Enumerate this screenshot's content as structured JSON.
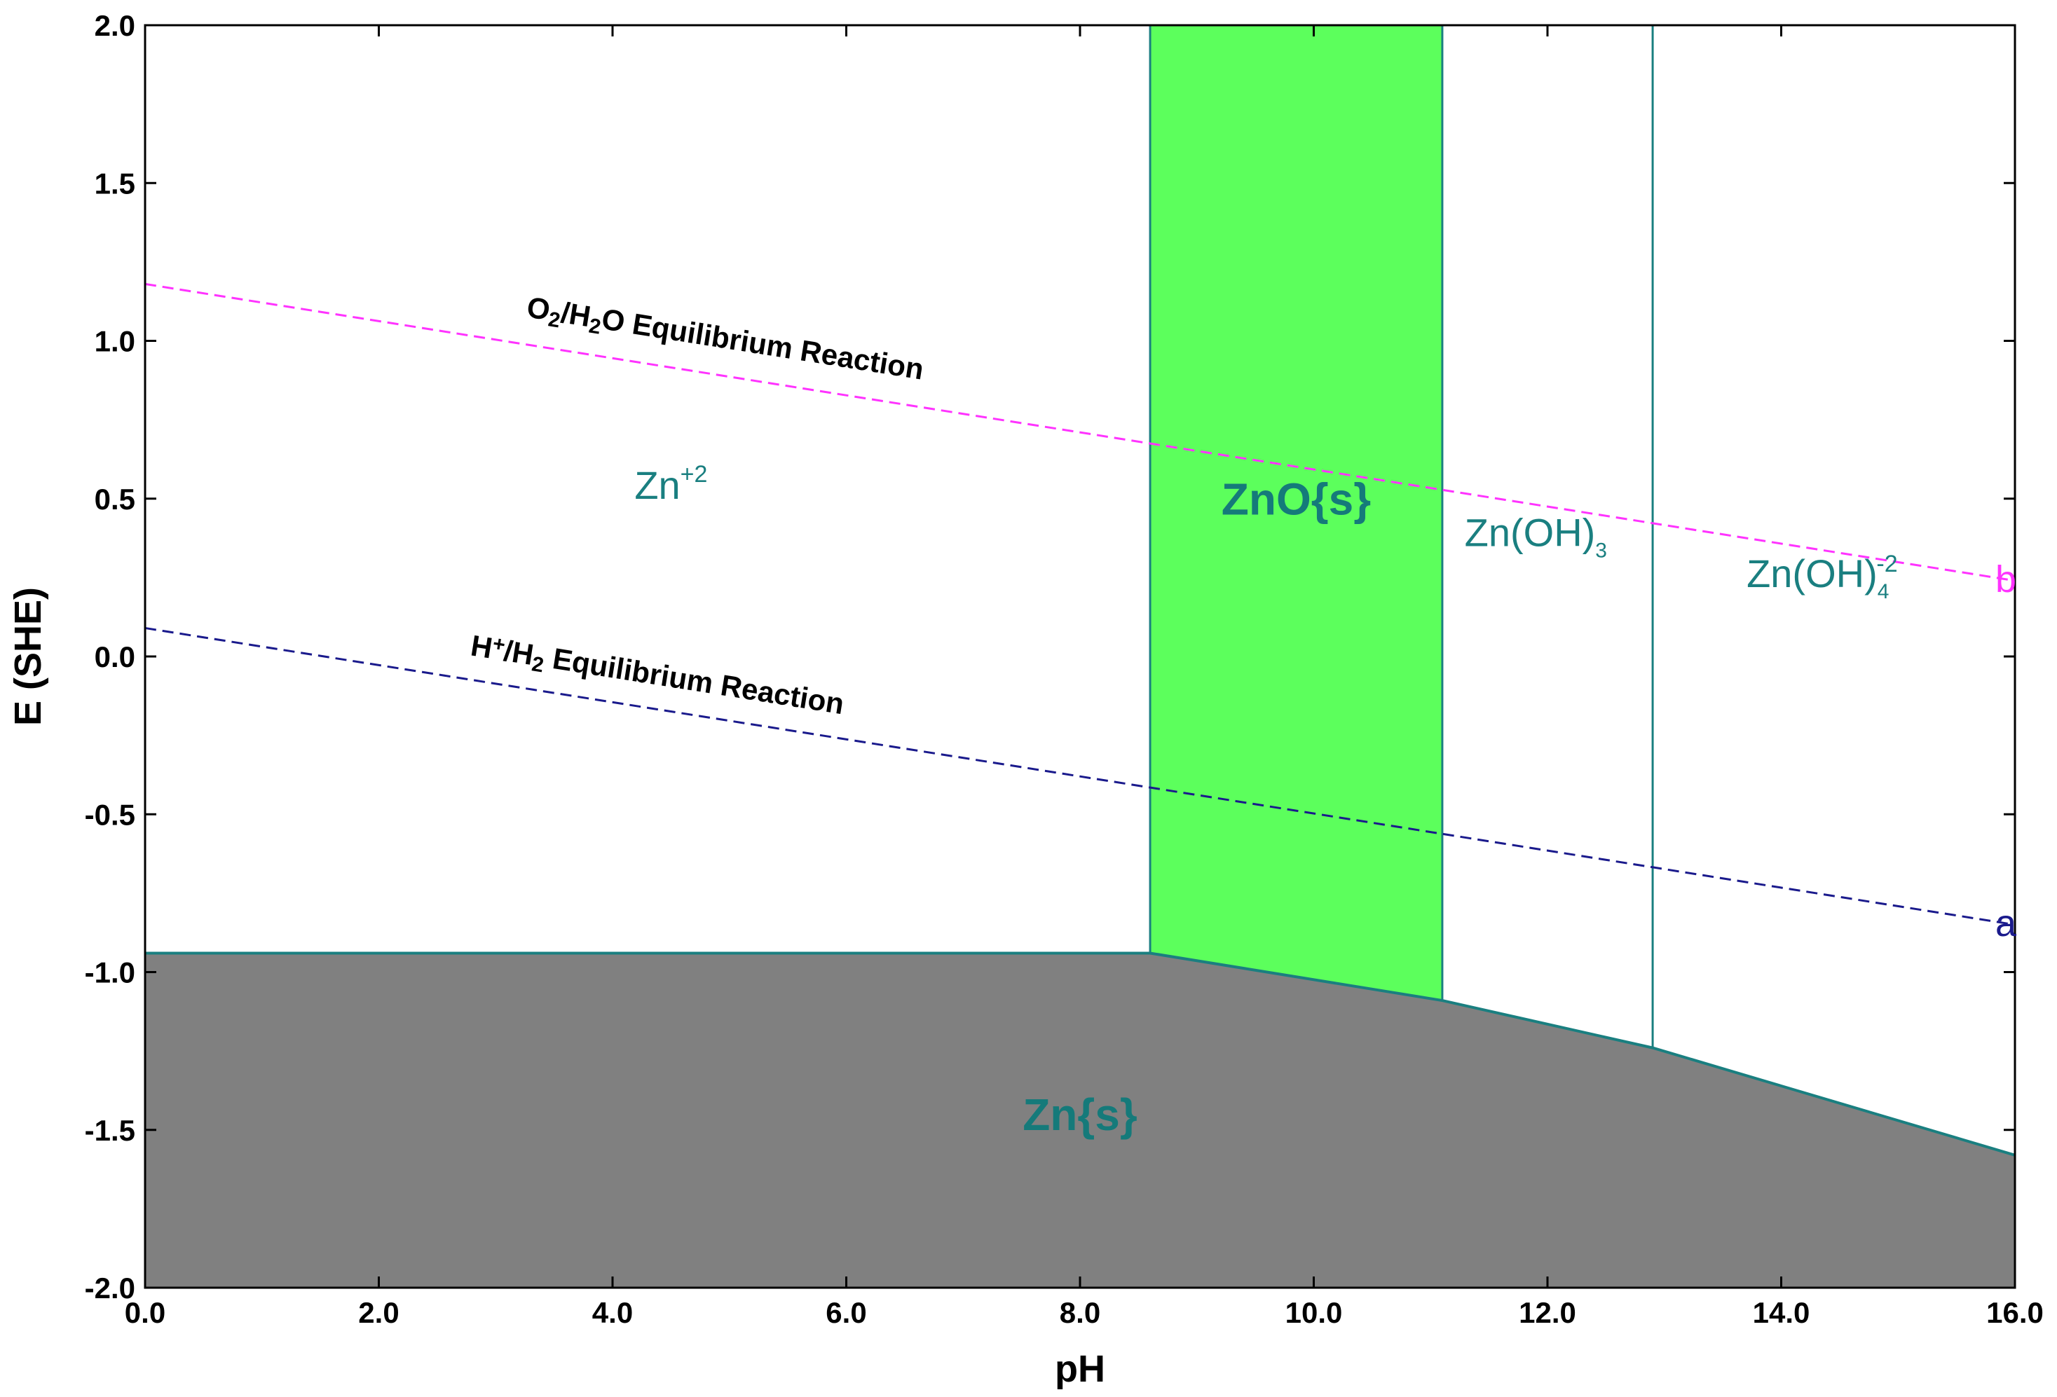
{
  "chart_data": {
    "type": "area",
    "xlabel": "pH",
    "ylabel": "E (SHE)",
    "xlim": [
      0,
      16
    ],
    "ylim": [
      -2,
      2
    ],
    "x_ticks": [
      "0.0",
      "2.0",
      "4.0",
      "6.0",
      "8.0",
      "10.0",
      "12.0",
      "14.0",
      "16.0"
    ],
    "y_ticks": [
      "2.0",
      "1.5",
      "1.0",
      "0.5",
      "0.0",
      "-0.5",
      "-1.0",
      "-1.5",
      "-2.0"
    ],
    "grid": false,
    "colors": {
      "solid_zn": "#808080",
      "solid_zno": "#5cff5c",
      "boundary": "#1a7f80",
      "o2_line": "#ff33ff",
      "h2_line": "#1a1a8c",
      "region_text": "#1a7f80"
    },
    "zn_boundary": [
      {
        "pH": 0.0,
        "E": -0.94
      },
      {
        "pH": 8.6,
        "E": -0.94
      },
      {
        "pH": 11.1,
        "E": -1.09
      },
      {
        "pH": 12.9,
        "E": -1.24
      },
      {
        "pH": 16.0,
        "E": -1.58
      }
    ],
    "zno_region": {
      "pH_min": 8.6,
      "pH_max": 11.1
    },
    "vertical_boundaries": [
      8.6,
      11.1,
      12.9
    ],
    "regions": [
      {
        "label": "Zn",
        "sup": "+2",
        "sub": "",
        "pH": 4.5,
        "E": 0.5,
        "bold": false
      },
      {
        "label": "ZnO{s}",
        "sup": "",
        "sub": "",
        "pH": 9.85,
        "E": 0.45,
        "bold": true
      },
      {
        "label": "Zn(OH)",
        "sup": "",
        "sub": "3",
        "pH": 11.9,
        "E": 0.35,
        "bold": false
      },
      {
        "label": "Zn(OH)",
        "sup": "-2",
        "sub": "4",
        "pH": 14.35,
        "E": 0.22,
        "bold": false
      },
      {
        "label": "Zn{s}",
        "sup": "",
        "sub": "",
        "pH": 8.0,
        "E": -1.5,
        "bold": true
      }
    ],
    "series": [
      {
        "name": "O2/H2O Equilibrium Reaction",
        "points": [
          {
            "pH": 0.0,
            "E": 1.18
          },
          {
            "pH": 16.0,
            "E": 0.24
          }
        ],
        "end_label": "b"
      },
      {
        "name": "H+/H2 Equilibrium Reaction",
        "points": [
          {
            "pH": 0.0,
            "E": 0.09
          },
          {
            "pH": 16.0,
            "E": -0.85
          }
        ],
        "end_label": "a"
      }
    ],
    "annotations": {
      "o2": {
        "p1": "O",
        "s1": "2",
        "p2": "/H",
        "s2": "2",
        "p3": "O Equilibrium Reaction"
      },
      "h2": {
        "p1": "H",
        "s1": "+",
        "p2": "/H",
        "s2": "2",
        "p3": " Equilibrium Reaction"
      }
    }
  }
}
